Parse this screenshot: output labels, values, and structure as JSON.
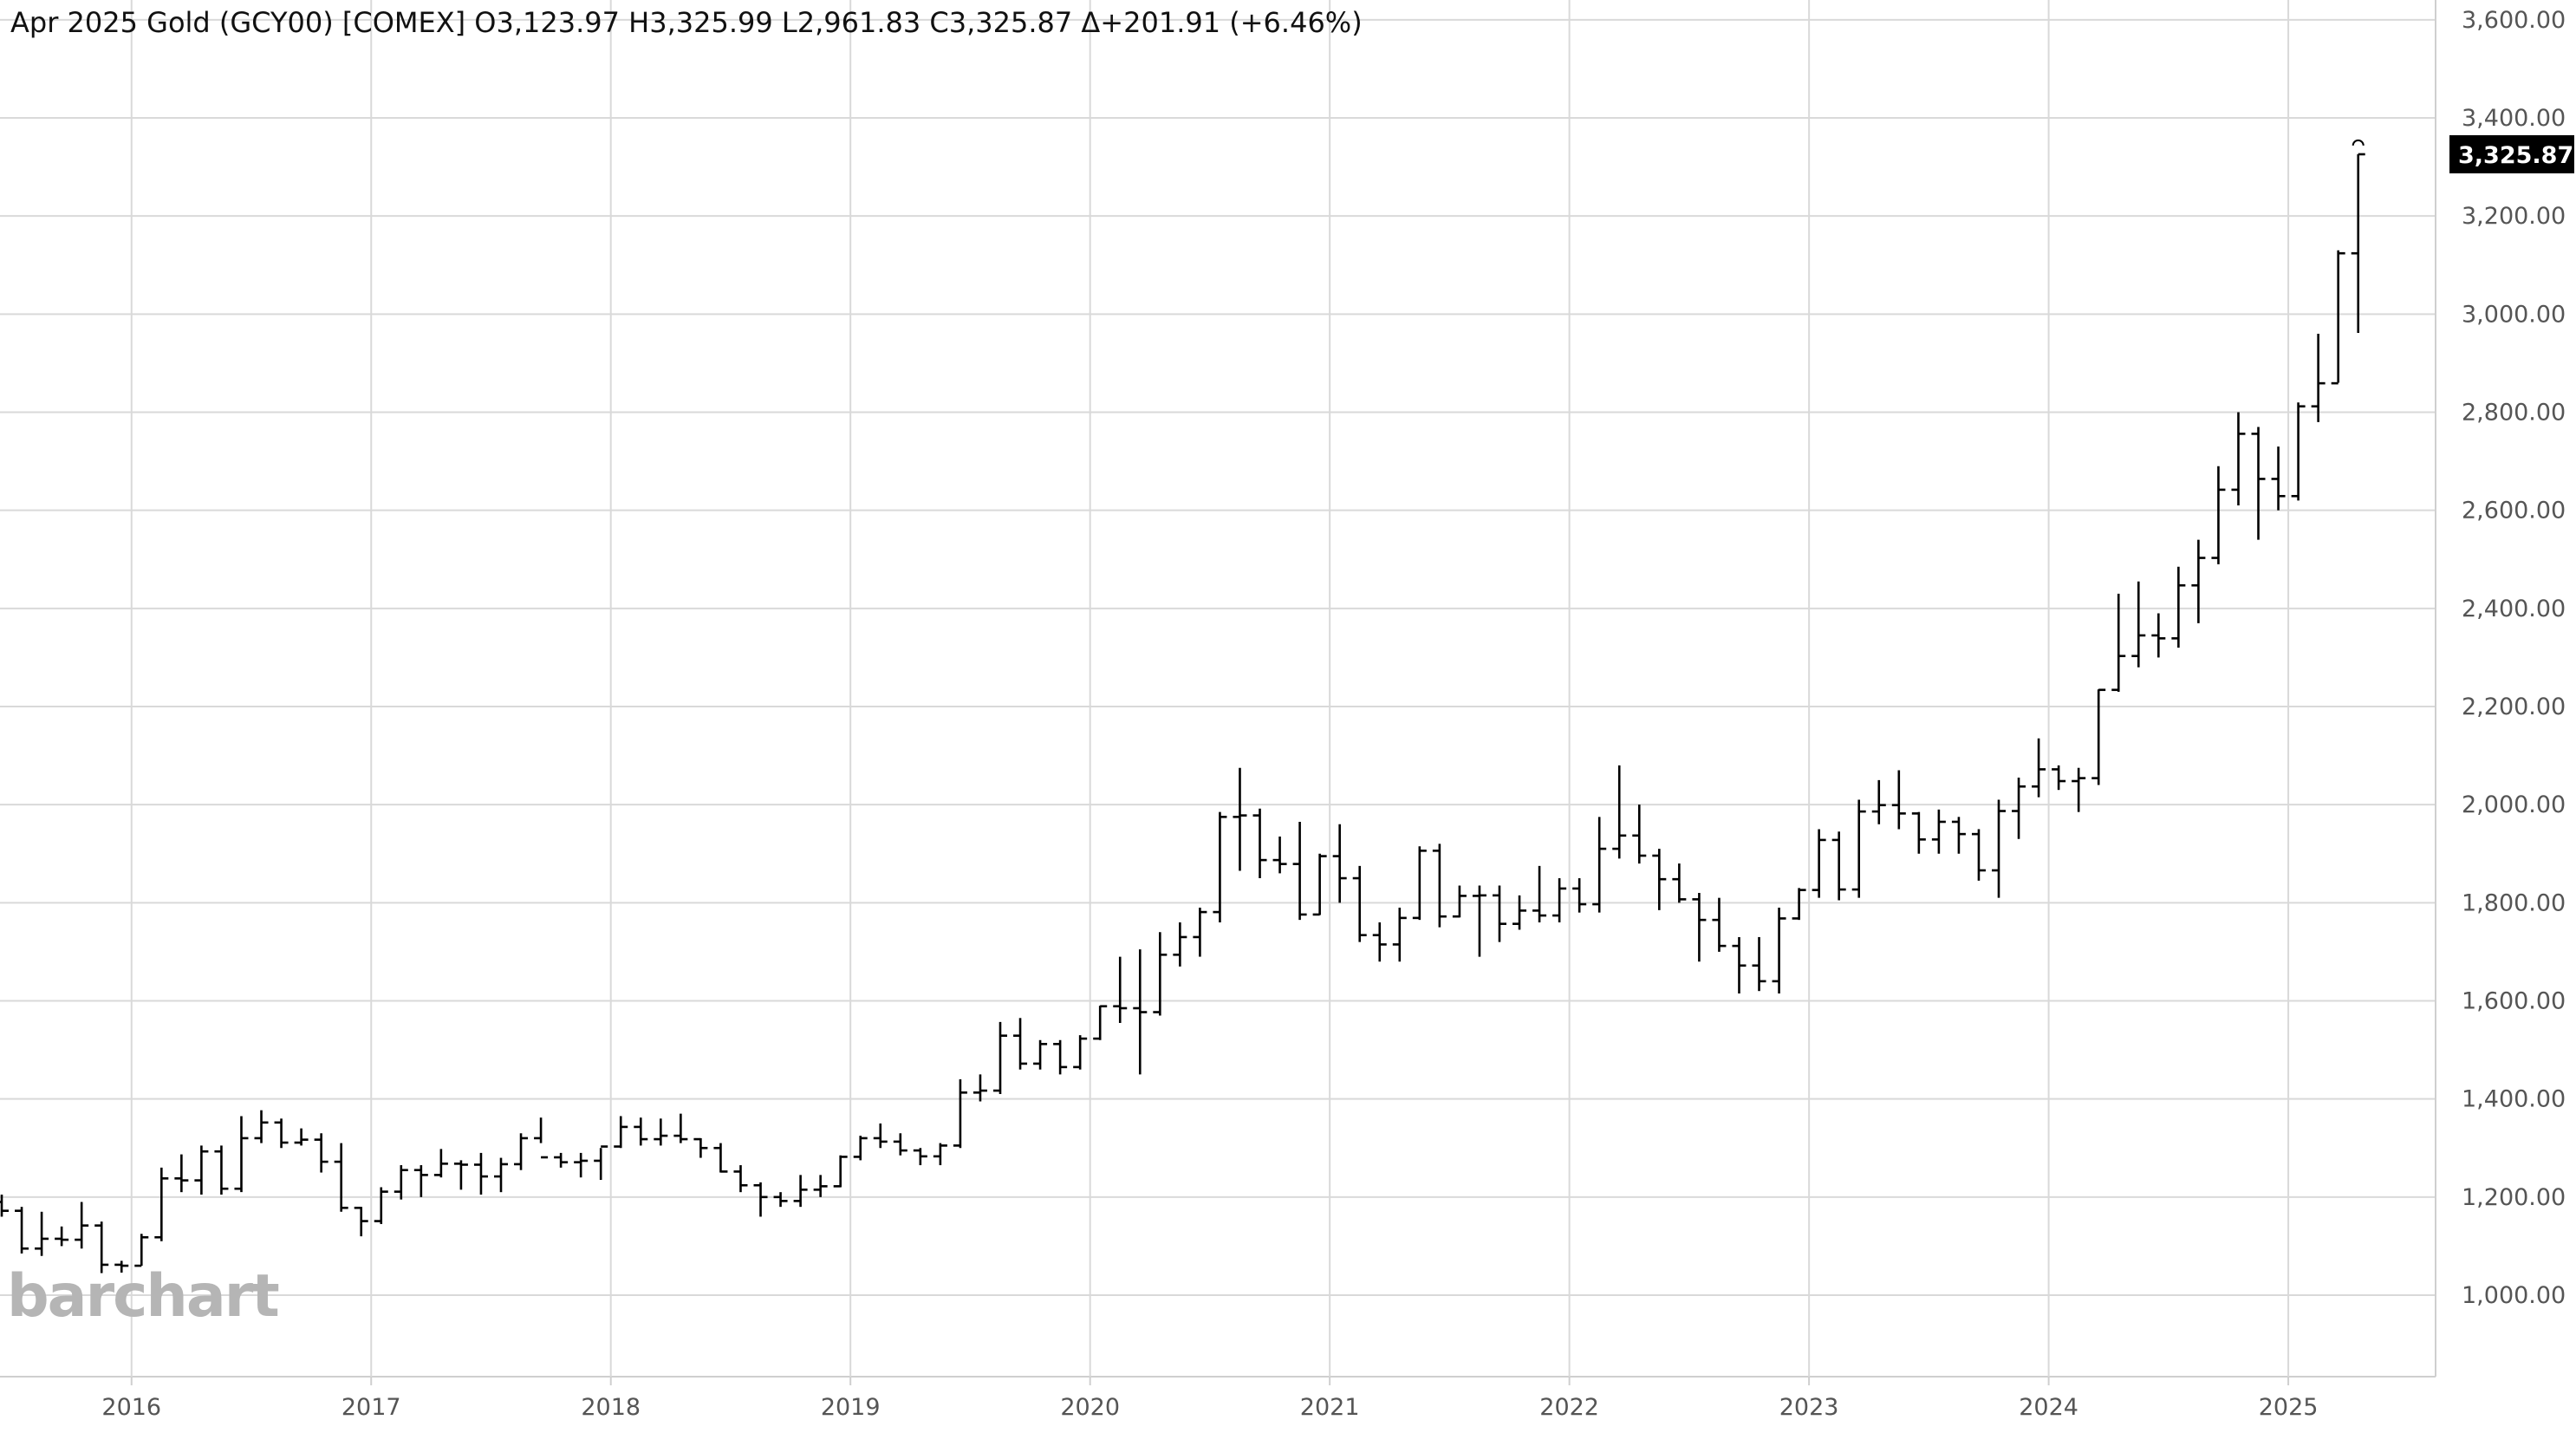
{
  "header": {
    "text": "Apr 2025 Gold (GCY00) [COMEX] O3,123.97 H3,325.99 L2,961.83 C3,325.87 Δ+201.91 (+6.46%)"
  },
  "logo": {
    "text": "barchart"
  },
  "last_price_label": "3,325.87",
  "chart_data": {
    "type": "ohlc-bar",
    "title": "Apr 2025 Gold (GCY00) [COMEX]",
    "interval": "monthly",
    "x_tick_labels": [
      "2016",
      "2017",
      "2018",
      "2019",
      "2020",
      "2021",
      "2022",
      "2023",
      "2024",
      "2025"
    ],
    "y_tick_labels": [
      "1,000.00",
      "1,200.00",
      "1,400.00",
      "1,600.00",
      "1,800.00",
      "2,000.00",
      "2,200.00",
      "2,400.00",
      "2,600.00",
      "2,800.00",
      "3,000.00",
      "3,200.00",
      "3,400.00",
      "3,600.00"
    ],
    "y_range": [
      820,
      3640
    ],
    "y_axis_position": "right",
    "grid": true,
    "last_price": 3325.87,
    "start_month": "2015-06",
    "bars": [
      [
        1190,
        1205,
        1160,
        1172
      ],
      [
        1172,
        1180,
        1085,
        1095
      ],
      [
        1095,
        1170,
        1080,
        1115
      ],
      [
        1115,
        1140,
        1100,
        1113
      ],
      [
        1113,
        1190,
        1095,
        1142
      ],
      [
        1142,
        1150,
        1045,
        1062
      ],
      [
        1062,
        1070,
        1046,
        1060
      ],
      [
        1060,
        1125,
        1060,
        1118
      ],
      [
        1118,
        1260,
        1110,
        1238
      ],
      [
        1238,
        1287,
        1210,
        1234
      ],
      [
        1234,
        1305,
        1205,
        1293
      ],
      [
        1293,
        1305,
        1205,
        1217
      ],
      [
        1217,
        1365,
        1210,
        1320
      ],
      [
        1320,
        1377,
        1310,
        1352
      ],
      [
        1352,
        1360,
        1300,
        1311
      ],
      [
        1311,
        1340,
        1305,
        1317
      ],
      [
        1317,
        1330,
        1250,
        1272
      ],
      [
        1272,
        1310,
        1170,
        1178
      ],
      [
        1178,
        1180,
        1120,
        1151
      ],
      [
        1151,
        1220,
        1145,
        1211
      ],
      [
        1211,
        1265,
        1195,
        1255
      ],
      [
        1255,
        1265,
        1200,
        1245
      ],
      [
        1245,
        1298,
        1240,
        1268
      ],
      [
        1268,
        1275,
        1215,
        1266
      ],
      [
        1266,
        1290,
        1205,
        1242
      ],
      [
        1242,
        1280,
        1210,
        1267
      ],
      [
        1267,
        1330,
        1255,
        1320
      ],
      [
        1320,
        1362,
        1310,
        1281
      ],
      [
        1281,
        1290,
        1260,
        1271
      ],
      [
        1271,
        1290,
        1240,
        1274
      ],
      [
        1274,
        1300,
        1235,
        1303
      ],
      [
        1303,
        1365,
        1300,
        1343
      ],
      [
        1343,
        1362,
        1305,
        1318
      ],
      [
        1318,
        1360,
        1305,
        1325
      ],
      [
        1325,
        1370,
        1310,
        1318
      ],
      [
        1318,
        1320,
        1280,
        1300
      ],
      [
        1300,
        1310,
        1250,
        1252
      ],
      [
        1252,
        1265,
        1210,
        1224
      ],
      [
        1224,
        1230,
        1160,
        1200
      ],
      [
        1200,
        1210,
        1180,
        1192
      ],
      [
        1192,
        1245,
        1180,
        1215
      ],
      [
        1215,
        1245,
        1200,
        1222
      ],
      [
        1222,
        1285,
        1220,
        1282
      ],
      [
        1282,
        1325,
        1275,
        1320
      ],
      [
        1320,
        1350,
        1300,
        1313
      ],
      [
        1313,
        1330,
        1285,
        1295
      ],
      [
        1295,
        1300,
        1265,
        1283
      ],
      [
        1283,
        1310,
        1265,
        1305
      ],
      [
        1305,
        1440,
        1300,
        1413
      ],
      [
        1413,
        1450,
        1395,
        1417
      ],
      [
        1417,
        1557,
        1410,
        1529
      ],
      [
        1529,
        1565,
        1460,
        1472
      ],
      [
        1472,
        1520,
        1460,
        1512
      ],
      [
        1512,
        1520,
        1450,
        1465
      ],
      [
        1465,
        1530,
        1460,
        1523
      ],
      [
        1523,
        1590,
        1520,
        1589
      ],
      [
        1589,
        1690,
        1555,
        1585
      ],
      [
        1585,
        1705,
        1450,
        1577
      ],
      [
        1577,
        1740,
        1570,
        1694
      ],
      [
        1694,
        1760,
        1670,
        1730
      ],
      [
        1730,
        1790,
        1690,
        1781
      ],
      [
        1781,
        1985,
        1760,
        1975
      ],
      [
        1975,
        2075,
        1865,
        1978
      ],
      [
        1978,
        1992,
        1850,
        1887
      ],
      [
        1887,
        1935,
        1860,
        1879
      ],
      [
        1879,
        1965,
        1765,
        1776
      ],
      [
        1776,
        1900,
        1775,
        1895
      ],
      [
        1895,
        1960,
        1800,
        1850
      ],
      [
        1850,
        1875,
        1720,
        1734
      ],
      [
        1734,
        1760,
        1680,
        1715
      ],
      [
        1715,
        1790,
        1680,
        1769
      ],
      [
        1769,
        1915,
        1765,
        1906
      ],
      [
        1906,
        1920,
        1750,
        1772
      ],
      [
        1772,
        1835,
        1770,
        1814
      ],
      [
        1814,
        1835,
        1690,
        1815
      ],
      [
        1815,
        1835,
        1720,
        1757
      ],
      [
        1757,
        1815,
        1745,
        1784
      ],
      [
        1784,
        1875,
        1760,
        1774
      ],
      [
        1774,
        1850,
        1760,
        1829
      ],
      [
        1829,
        1850,
        1780,
        1797
      ],
      [
        1797,
        1975,
        1780,
        1910
      ],
      [
        1910,
        2080,
        1890,
        1937
      ],
      [
        1937,
        2000,
        1880,
        1896
      ],
      [
        1896,
        1910,
        1785,
        1848
      ],
      [
        1848,
        1880,
        1800,
        1807
      ],
      [
        1807,
        1820,
        1680,
        1765
      ],
      [
        1765,
        1810,
        1700,
        1712
      ],
      [
        1712,
        1730,
        1615,
        1672
      ],
      [
        1672,
        1730,
        1620,
        1640
      ],
      [
        1640,
        1790,
        1615,
        1768
      ],
      [
        1768,
        1830,
        1765,
        1826
      ],
      [
        1826,
        1950,
        1810,
        1928
      ],
      [
        1928,
        1945,
        1805,
        1827
      ],
      [
        1827,
        2010,
        1810,
        1986
      ],
      [
        1986,
        2050,
        1960,
        1999
      ],
      [
        1999,
        2070,
        1950,
        1982
      ],
      [
        1982,
        1985,
        1900,
        1929
      ],
      [
        1929,
        1990,
        1900,
        1965
      ],
      [
        1965,
        1975,
        1900,
        1940
      ],
      [
        1940,
        1950,
        1845,
        1866
      ],
      [
        1866,
        2010,
        1810,
        1987
      ],
      [
        1987,
        2055,
        1930,
        2037
      ],
      [
        2037,
        2135,
        2015,
        2072
      ],
      [
        2072,
        2080,
        2030,
        2048
      ],
      [
        2048,
        2075,
        1985,
        2054
      ],
      [
        2054,
        2235,
        2040,
        2234
      ],
      [
        2234,
        2430,
        2230,
        2303
      ],
      [
        2303,
        2455,
        2280,
        2345
      ],
      [
        2345,
        2390,
        2300,
        2339
      ],
      [
        2339,
        2485,
        2320,
        2447
      ],
      [
        2447,
        2540,
        2370,
        2503
      ],
      [
        2503,
        2690,
        2490,
        2642
      ],
      [
        2642,
        2800,
        2610,
        2756
      ],
      [
        2756,
        2770,
        2540,
        2664
      ],
      [
        2664,
        2730,
        2600,
        2629
      ],
      [
        2629,
        2820,
        2620,
        2812
      ],
      [
        2812,
        2960,
        2780,
        2859
      ],
      [
        2859,
        3130,
        2860,
        3124
      ],
      [
        3123.97,
        3325.99,
        2961.83,
        3325.87
      ]
    ]
  }
}
